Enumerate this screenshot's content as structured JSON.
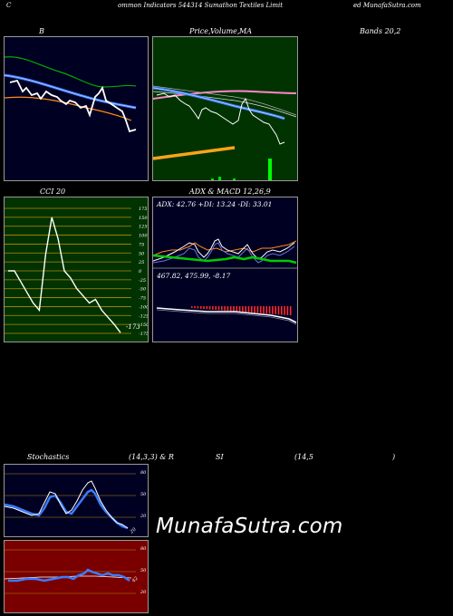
{
  "header": {
    "left_c": "C",
    "center": "ommon  Indicators 544314  Sumathon  Textiles Limit",
    "right": "ed MunafaSutra.com"
  },
  "row1": {
    "b_label": "B",
    "price_label": "Price,",
    "volume_label": "Volume,",
    "ma_label": "MA",
    "bands_label": "Bands 20,2"
  },
  "row2": {
    "cci_label": "CCI 20",
    "adx_label": "ADX  & MACD 12,26,9",
    "adx_values": "ADX: 42.76  +DI: 13.24  -DI: 33.01",
    "macd_values": "467.82,  475.99,  -8.17"
  },
  "row3": {
    "stoch_label": "Stochastics",
    "stoch_params": "(14,3,3) & R",
    "si_label": "SI",
    "rsi_params": "(14,5",
    "rsi_close": ")"
  },
  "watermark": "MunafaSutra.com",
  "colors": {
    "panel_dark": "#000022",
    "panel_green": "#003300",
    "panel_olive": "#003300",
    "panel_red": "#7a0000",
    "line_white": "#ffffff",
    "line_blue": "#3a7cff",
    "line_orange": "#ff8c1a",
    "line_green": "#00cc00",
    "line_pink": "#ff88cc",
    "grid_orange": "#b8860b"
  },
  "chart_data": [
    {
      "type": "line",
      "title": "Bollinger Bands 20,2",
      "series": [
        {
          "values": [
            0.78,
            0.74,
            0.68,
            0.69,
            0.6,
            0.62,
            0.58,
            0.52,
            0.46,
            0.5,
            0.44,
            0.4,
            0.38,
            0.36,
            0.3,
            0.28,
            0.2,
            0.18
          ]
        }
      ]
    },
    {
      "type": "line",
      "title": "Price, Volume, MA",
      "series": [
        {
          "values": [
            0.78,
            0.74,
            0.72,
            0.7,
            0.66,
            0.68,
            0.62,
            0.58,
            0.64,
            0.66,
            0.6,
            0.5,
            0.46,
            0.42,
            0.4,
            0.38
          ]
        }
      ]
    },
    {
      "type": "line",
      "title": "CCI 20",
      "ylim": [
        -175,
        175
      ],
      "yticks": [
        "175",
        "150",
        "125",
        "100",
        "75",
        "50",
        "25",
        "0",
        "-25",
        "-50",
        "-75",
        "-100",
        "-125",
        "-150",
        "-175"
      ],
      "last_value_label": "-173",
      "series": [
        {
          "values": [
            0,
            0,
            -30,
            -60,
            -90,
            -110,
            45,
            150,
            90,
            0,
            -20,
            -50,
            -70,
            -90,
            -80,
            -110,
            -130,
            -150,
            -173
          ]
        }
      ]
    },
    {
      "type": "line",
      "title": "ADX & MACD 12,26,9",
      "series": [
        {
          "name": "ADX",
          "values": [
            42.76
          ]
        },
        {
          "name": "+DI",
          "values": [
            13.24
          ]
        },
        {
          "name": "-DI",
          "values": [
            33.01
          ]
        }
      ]
    },
    {
      "type": "line",
      "title": "Stochastics (14,3,3)",
      "yticks": [
        "80",
        "50",
        "20"
      ],
      "last_value_label": "20",
      "series": [
        {
          "values": [
            40,
            38,
            35,
            32,
            35,
            55,
            60,
            45,
            30,
            40,
            65,
            75,
            55,
            35,
            25,
            20
          ]
        }
      ]
    },
    {
      "type": "line",
      "title": "RSI (14,5)",
      "yticks": [
        "80",
        "50",
        "20"
      ],
      "last_value_label": "42",
      "series": [
        {
          "values": [
            45,
            44,
            45,
            45,
            46,
            45,
            44,
            46,
            48,
            47,
            46,
            48,
            50,
            48,
            46,
            45,
            44,
            42
          ]
        }
      ]
    }
  ]
}
